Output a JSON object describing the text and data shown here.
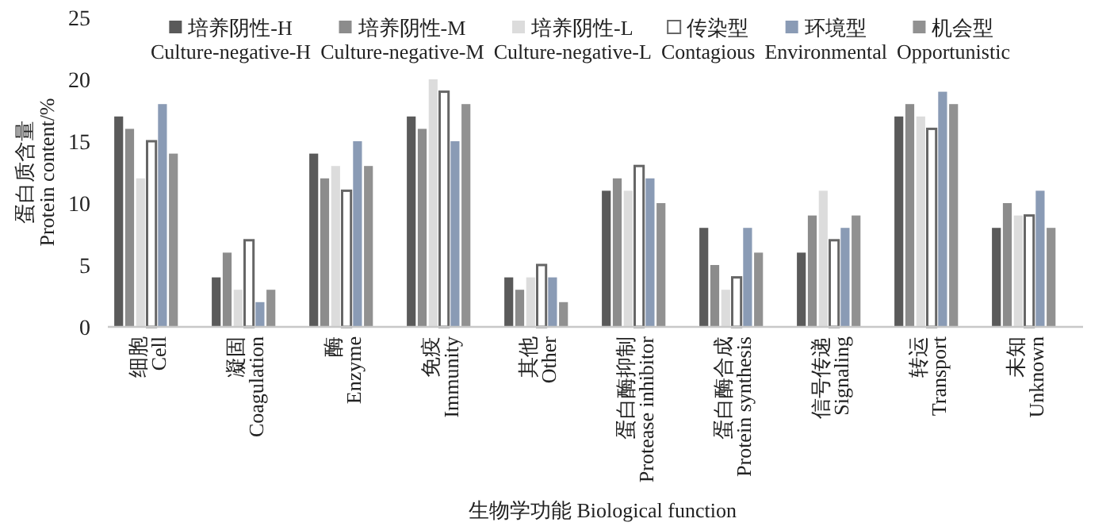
{
  "chart_data": {
    "type": "bar",
    "xlabel": "生物学功能 Biological function",
    "ylabel": "蛋白质含量\nProtein content/%",
    "categories": [
      "细胞\nCell",
      "凝固\nCoagulation",
      "酶\nEnzyme",
      "免疫\nImmunity",
      "其他\nOther",
      "蛋白酶抑制\nProtease inhibitor",
      "蛋白酶合成\nProtein synthesis",
      "信号传递\nSignaling",
      "转运\nTransport",
      "未知\nUnknown"
    ],
    "series": [
      {
        "name": "培养阴性-H\nCulture-negative-H",
        "color": "#5a5a5a",
        "values": [
          17,
          4,
          14,
          17,
          4,
          11,
          8,
          6,
          17,
          8
        ]
      },
      {
        "name": "培养阴性-M\nCulture-negative-M",
        "color": "#8c8c8c",
        "values": [
          16,
          6,
          12,
          16,
          3,
          12,
          5,
          9,
          18,
          10
        ]
      },
      {
        "name": "培养阴性-L\nCulture-negative-L",
        "color": "#dcdcdc",
        "values": [
          12,
          3,
          13,
          20,
          4,
          11,
          3,
          11,
          17,
          9
        ]
      },
      {
        "name": "传染型\nContagious",
        "color": "#ffffff",
        "values": [
          15,
          7,
          11,
          19,
          5,
          13,
          4,
          7,
          16,
          9
        ]
      },
      {
        "name": "环境型\nEnvironmental",
        "color": "#8a9bb5",
        "values": [
          18,
          2,
          15,
          15,
          4,
          12,
          8,
          8,
          19,
          11
        ]
      },
      {
        "name": "机会型\nOpportunistic",
        "color": "#919191",
        "values": [
          14,
          3,
          13,
          18,
          2,
          10,
          6,
          9,
          18,
          8
        ]
      }
    ],
    "ylim": [
      0,
      25
    ],
    "yticks": [
      0,
      5,
      10,
      15,
      20,
      25
    ],
    "grid": false,
    "legend": "top"
  }
}
